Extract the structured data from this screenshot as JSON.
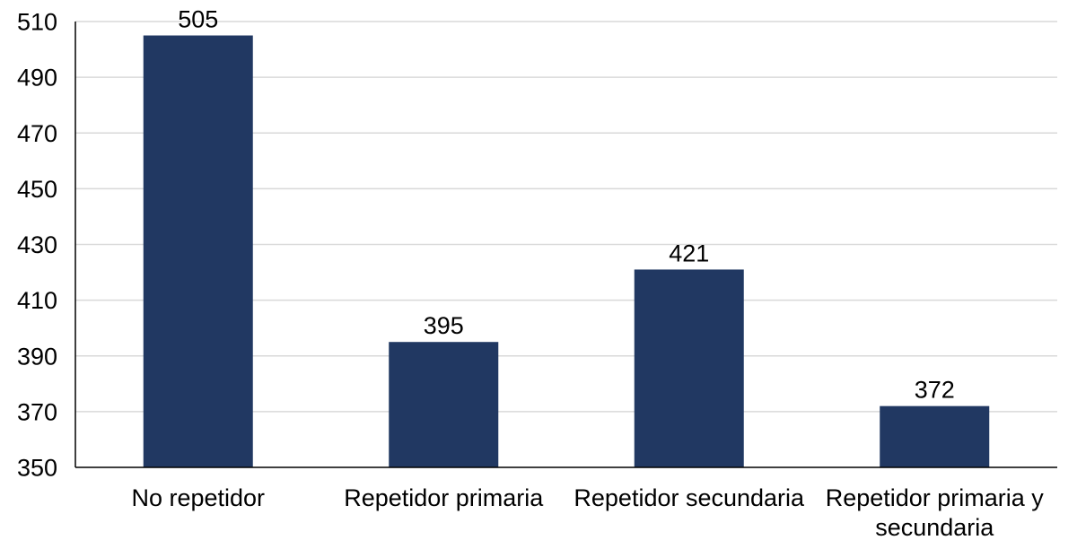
{
  "chart_data": {
    "type": "bar",
    "categories": [
      [
        "No repetidor"
      ],
      [
        "Repetidor primaria"
      ],
      [
        "Repetidor secundaria"
      ],
      [
        "Repetidor primaria y",
        "secundaria"
      ]
    ],
    "values": [
      505,
      395,
      421,
      372
    ],
    "data_labels": [
      "505",
      "395",
      "421",
      "372"
    ],
    "ylim": [
      350,
      510
    ],
    "yticks": [
      350,
      370,
      390,
      410,
      430,
      450,
      470,
      490,
      510
    ],
    "title": "",
    "xlabel": "",
    "ylabel": "",
    "grid": true,
    "legend": "none",
    "bar_color": "#213862",
    "grid_color": "#d9d9d9"
  }
}
